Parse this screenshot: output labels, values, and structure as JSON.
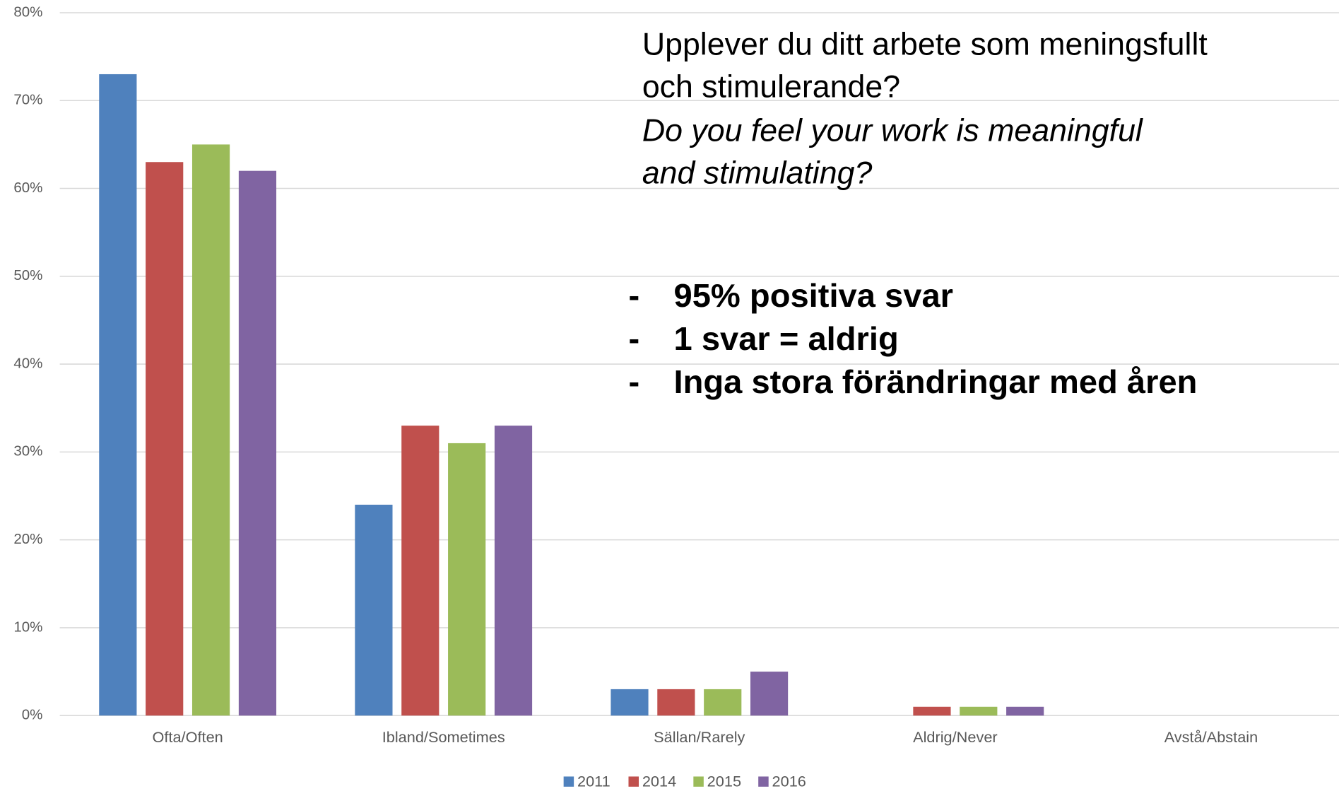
{
  "chart_data": {
    "type": "bar",
    "title_lines": [
      "Upplever du ditt arbete som meningsfullt",
      "och stimulerande?"
    ],
    "subtitle_lines": [
      "Do you feel your work is meaningful",
      "and stimulating?"
    ],
    "bullets": [
      {
        "marker": "-",
        "text": "95% positiva svar"
      },
      {
        "marker": "-",
        "text": "1 svar = aldrig"
      },
      {
        "marker": "-",
        "text": "Inga stora förändringar med åren"
      }
    ],
    "categories": [
      "Ofta/Often",
      "Ibland/Sometimes",
      "Sällan/Rarely",
      "Aldrig/Never",
      "Avstå/Abstain"
    ],
    "series": [
      {
        "name": "2011",
        "color": "#4f81bd",
        "values": [
          73,
          24,
          3,
          0,
          0
        ]
      },
      {
        "name": "2014",
        "color": "#c0504d",
        "values": [
          63,
          33,
          3,
          1,
          0
        ]
      },
      {
        "name": "2015",
        "color": "#9bbb59",
        "values": [
          65,
          31,
          3,
          1,
          0
        ]
      },
      {
        "name": "2016",
        "color": "#8064a2",
        "values": [
          62,
          33,
          5,
          1,
          0
        ]
      }
    ],
    "ylim": [
      0,
      80
    ],
    "yticks": [
      {
        "value": 0,
        "label": "0%"
      },
      {
        "value": 10,
        "label": "10%"
      },
      {
        "value": 20,
        "label": "20%"
      },
      {
        "value": 30,
        "label": "30%"
      },
      {
        "value": 40,
        "label": "40%"
      },
      {
        "value": 50,
        "label": "50%"
      },
      {
        "value": 60,
        "label": "60%"
      },
      {
        "value": 70,
        "label": "70%"
      },
      {
        "value": 80,
        "label": "80%"
      }
    ],
    "grid": true,
    "legend": "bottom"
  }
}
